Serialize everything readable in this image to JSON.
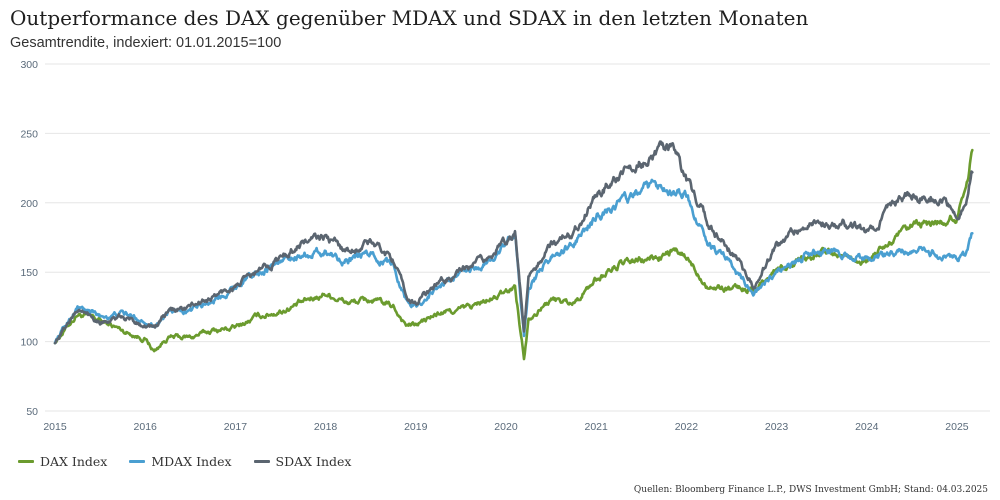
{
  "colors": {
    "dax": "#6b9b2e",
    "mdax": "#4a9fd1",
    "sdax": "#5b6570",
    "grid": "#e6e6e6",
    "axis_text": "#5a6a7a"
  },
  "chart_data": {
    "type": "line",
    "title": "Outperformance des DAX gegenüber MDAX und SDAX in den letzten Monaten",
    "subtitle": "Gesamtrendite, indexiert: 01.01.2015=100",
    "xlabel": "",
    "ylabel": "",
    "x_ticks": [
      "2015",
      "2016",
      "2017",
      "2018",
      "2019",
      "2020",
      "2021",
      "2022",
      "2023",
      "2024",
      "2025"
    ],
    "y_ticks": [
      50,
      100,
      150,
      200,
      250,
      300
    ],
    "ylim": [
      50,
      300
    ],
    "xlim": [
      2015.0,
      2025.2
    ],
    "x": [
      2015.0,
      2015.25,
      2015.5,
      2015.75,
      2016.0,
      2016.1,
      2016.25,
      2016.5,
      2016.75,
      2017.0,
      2017.25,
      2017.5,
      2017.75,
      2018.0,
      2018.25,
      2018.5,
      2018.75,
      2018.9,
      2019.0,
      2019.25,
      2019.5,
      2019.75,
      2020.0,
      2020.1,
      2020.2,
      2020.25,
      2020.5,
      2020.75,
      2021.0,
      2021.25,
      2021.5,
      2021.75,
      2021.85,
      2022.0,
      2022.25,
      2022.5,
      2022.75,
      2023.0,
      2023.25,
      2023.5,
      2023.75,
      2024.0,
      2024.25,
      2024.5,
      2024.75,
      2025.0,
      2025.1,
      2025.17
    ],
    "series": [
      {
        "name": "DAX Index",
        "color": "#6b9b2e",
        "values": [
          100,
          120,
          115,
          108,
          102,
          93,
          103,
          103,
          108,
          110,
          118,
          122,
          128,
          135,
          128,
          130,
          125,
          112,
          112,
          120,
          123,
          128,
          135,
          140,
          88,
          118,
          130,
          128,
          145,
          155,
          158,
          162,
          165,
          160,
          140,
          138,
          138,
          152,
          160,
          165,
          162,
          158,
          170,
          182,
          185,
          190,
          215,
          238
        ]
      },
      {
        "name": "MDAX Index",
        "color": "#4a9fd1",
        "values": [
          100,
          125,
          118,
          120,
          115,
          112,
          120,
          122,
          130,
          140,
          150,
          158,
          163,
          165,
          158,
          163,
          155,
          130,
          125,
          140,
          148,
          155,
          170,
          177,
          105,
          140,
          160,
          170,
          190,
          200,
          208,
          213,
          210,
          205,
          170,
          155,
          135,
          150,
          160,
          165,
          163,
          158,
          162,
          165,
          163,
          158,
          162,
          178
        ]
      },
      {
        "name": "SDAX Index",
        "color": "#5b6570",
        "values": [
          100,
          123,
          115,
          117,
          112,
          110,
          121,
          125,
          132,
          140,
          150,
          160,
          172,
          175,
          165,
          172,
          160,
          130,
          128,
          142,
          150,
          158,
          172,
          180,
          108,
          145,
          170,
          180,
          205,
          220,
          230,
          238,
          240,
          215,
          185,
          165,
          140,
          168,
          182,
          188,
          185,
          178,
          195,
          205,
          205,
          195,
          200,
          222
        ]
      }
    ]
  },
  "legend": [
    "DAX Index",
    "MDAX Index",
    "SDAX Index"
  ],
  "source": "Quellen: Bloomberg Finance L.P., DWS Investment GmbH; Stand: 04.03.2025"
}
